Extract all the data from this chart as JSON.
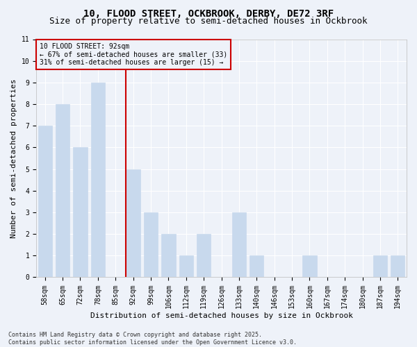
{
  "title_line1": "10, FLOOD STREET, OCKBROOK, DERBY, DE72 3RF",
  "title_line2": "Size of property relative to semi-detached houses in Ockbrook",
  "categories": [
    "58sqm",
    "65sqm",
    "72sqm",
    "78sqm",
    "85sqm",
    "92sqm",
    "99sqm",
    "106sqm",
    "112sqm",
    "119sqm",
    "126sqm",
    "133sqm",
    "140sqm",
    "146sqm",
    "153sqm",
    "160sqm",
    "167sqm",
    "174sqm",
    "180sqm",
    "187sqm",
    "194sqm"
  ],
  "values": [
    7,
    8,
    6,
    9,
    0,
    5,
    3,
    2,
    1,
    2,
    0,
    3,
    1,
    0,
    0,
    1,
    0,
    0,
    0,
    1,
    1
  ],
  "highlight_index": 5,
  "bar_color": "#c8d9ed",
  "highlight_line_color": "#cc0000",
  "ylabel": "Number of semi-detached properties",
  "xlabel": "Distribution of semi-detached houses by size in Ockbrook",
  "ylim": [
    0,
    11
  ],
  "yticks": [
    0,
    1,
    2,
    3,
    4,
    5,
    6,
    7,
    8,
    9,
    10,
    11
  ],
  "annotation_title": "10 FLOOD STREET: 92sqm",
  "annotation_line1": "← 67% of semi-detached houses are smaller (33)",
  "annotation_line2": "31% of semi-detached houses are larger (15) →",
  "footer_line1": "Contains HM Land Registry data © Crown copyright and database right 2025.",
  "footer_line2": "Contains public sector information licensed under the Open Government Licence v3.0.",
  "background_color": "#eef2f9",
  "grid_color": "#ffffff",
  "title_fontsize": 10,
  "subtitle_fontsize": 9,
  "tick_fontsize": 7,
  "ylabel_fontsize": 8,
  "xlabel_fontsize": 8,
  "annotation_fontsize": 7,
  "footer_fontsize": 6
}
